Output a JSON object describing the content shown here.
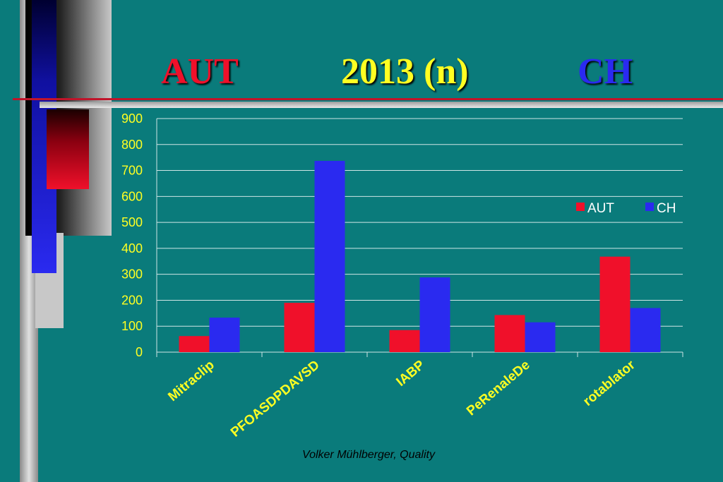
{
  "title": {
    "left": "AUT",
    "center": "2013  (n)",
    "right": "CH"
  },
  "footer": "Volker Mühlberger, Quality",
  "colors": {
    "aut": "#f0102a",
    "ch": "#2a2af0",
    "tick_text": "#ffff22",
    "gridline": "#cfe6e6",
    "background": "#0a7b7b"
  },
  "chart_data": {
    "type": "bar",
    "categories": [
      "Mitraclip",
      "PFOASDPDAVSD",
      "IABP",
      "PeRenaleDe",
      "rotablator"
    ],
    "series": [
      {
        "name": "AUT",
        "values": [
          62,
          190,
          85,
          143,
          368
        ]
      },
      {
        "name": "CH",
        "values": [
          133,
          737,
          288,
          115,
          170
        ]
      }
    ],
    "ylim": [
      0,
      900
    ],
    "yticks": [
      0,
      100,
      200,
      300,
      400,
      500,
      600,
      700,
      800,
      900
    ],
    "grid": true,
    "legend": "right",
    "xlabel": "",
    "ylabel": ""
  }
}
